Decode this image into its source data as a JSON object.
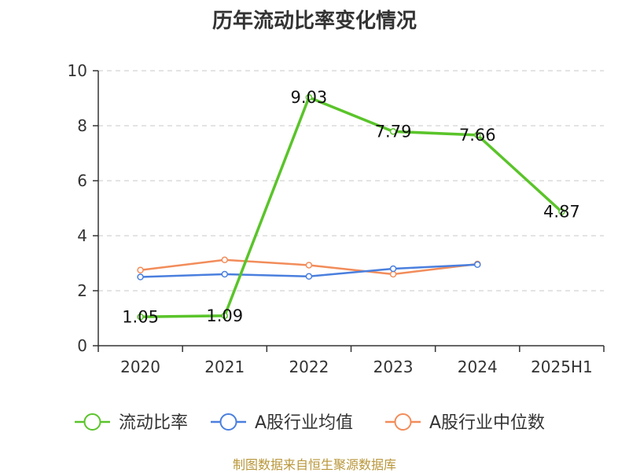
{
  "page": {
    "title": "历年流动比率变化情况",
    "credit": "制图数据来自恒生聚源数据库"
  },
  "chart_data": {
    "type": "line",
    "title": "历年流动比率变化情况",
    "categories": [
      "2020",
      "2021",
      "2022",
      "2023",
      "2024",
      "2025H1"
    ],
    "ylim": [
      0,
      10
    ],
    "yticks": [
      0,
      2,
      4,
      6,
      8,
      10
    ],
    "grid": "horizontal-dashed",
    "legend": "bottom",
    "series": [
      {
        "name": "流动比率",
        "color": "#5ac42a",
        "values": [
          1.05,
          1.09,
          9.03,
          7.79,
          7.66,
          4.87
        ],
        "labels": [
          "1.05",
          "1.09",
          "9.03",
          "7.79",
          "7.66",
          "4.87"
        ]
      },
      {
        "name": "A股行业均值",
        "color": "#4a7fde",
        "values": [
          2.5,
          2.6,
          2.52,
          2.8,
          2.95,
          null
        ]
      },
      {
        "name": "A股行业中位数",
        "color": "#f28c5a",
        "values": [
          2.75,
          3.12,
          2.93,
          2.6,
          2.97,
          null
        ]
      }
    ]
  }
}
